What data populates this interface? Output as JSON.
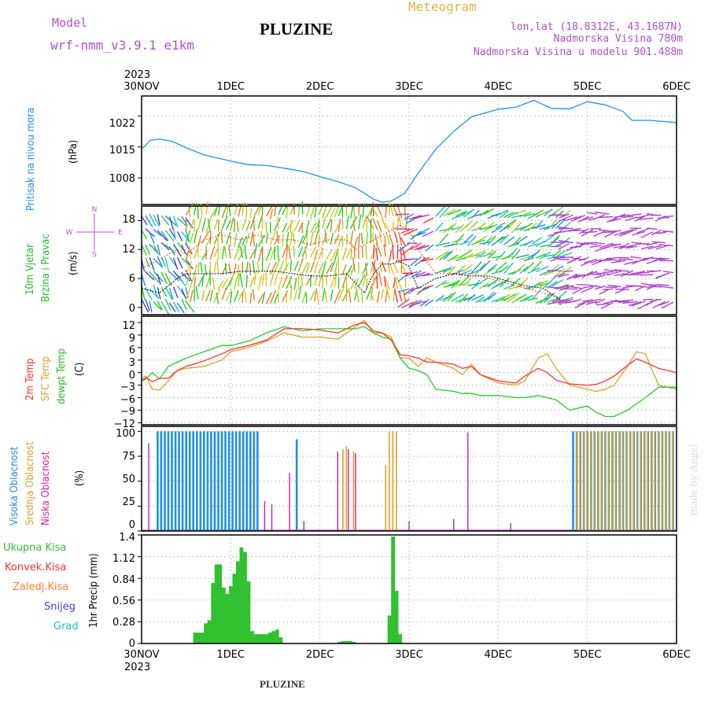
{
  "header": {
    "model_label": "Model",
    "model_name": "wrf-nmm_v3.9.1 e1km",
    "station": "PLUZINE",
    "meteogram": "Meteogram",
    "lonlat": "lon,lat (18.8312E, 43.1687N)",
    "altitude": "Nadmorska Visina 780m",
    "model_altitude": "Nadmorska Visina u modelu 901.488m",
    "footer_station": "PLUZINE",
    "watermark": "made by Angel"
  },
  "colors": {
    "pressure": "#1e90ff",
    "temp2m": "#ff3030",
    "sfc_temp": "#e0a020",
    "dewpt": "#20d020",
    "cloud_high": "#2090e0",
    "cloud_mid": "#e0a020",
    "cloud_low": "#c020c0",
    "precip": "#30c030",
    "label_purple": "#b050d0",
    "label_orange": "#e8b040"
  },
  "x_axis": {
    "top_year": "2023",
    "bottom_year": "2023",
    "labels": [
      "30NOV",
      "1DEC",
      "2DEC",
      "3DEC",
      "4DEC",
      "5DEC",
      "6DEC"
    ]
  },
  "wind_compass": {
    "n": "N",
    "s": "S",
    "w": "W",
    "e": "E"
  },
  "panels": {
    "pressure": {
      "ylabel1": "Pritisak na nivou mora",
      "unit": "(hPa)",
      "ticks": [
        "1008",
        "1015",
        "1022"
      ]
    },
    "wind": {
      "ylabel1": "10m Vjetar",
      "ylabel2": "Brzina i Pravac",
      "unit": "(m/s)",
      "ticks": [
        "0",
        "6",
        "12",
        "18"
      ]
    },
    "temp": {
      "l1": "2m Temp",
      "l2": "SFC Temp",
      "l3": "dewpt Temp",
      "unit": "(C)",
      "ticks": [
        "12",
        "9",
        "6",
        "3",
        "0",
        "−3",
        "−6",
        "−9",
        "−12"
      ]
    },
    "cloud": {
      "l1": "Visoka Oblacnost",
      "l2": "Srednja Oblacnost",
      "l3": "Niska Oblacnost",
      "unit": "(%)",
      "ticks": [
        "100",
        "75",
        "50",
        "25",
        "0"
      ]
    },
    "precip": {
      "unit_label": "1hr Precip (mm)",
      "ticks": [
        "1.4",
        "1.12",
        "0.84",
        "0.56",
        "0.28",
        "0"
      ],
      "legend": [
        "Ukupna Kisa",
        "Konvek.Kisa",
        "Zaledj.Kisa",
        "Snijeg",
        "Grad"
      ],
      "legend_colors": [
        "#30c030",
        "#ff3030",
        "#ff8030",
        "#4040e0",
        "#20c0c0"
      ]
    }
  },
  "chart_data": [
    {
      "type": "line",
      "name": "pressure",
      "x_unit": "days since 30NOV 00Z",
      "xlim": [
        0,
        6
      ],
      "ylim": [
        1002,
        1026.5
      ],
      "x": [
        0,
        0.1,
        0.2,
        0.35,
        0.5,
        0.7,
        1.0,
        1.2,
        1.4,
        1.6,
        1.8,
        2.0,
        2.2,
        2.4,
        2.6,
        2.7,
        2.8,
        2.95,
        3.1,
        3.3,
        3.5,
        3.7,
        4.0,
        4.2,
        4.4,
        4.6,
        4.8,
        5.0,
        5.2,
        5.4,
        5.5,
        5.7,
        6.0
      ],
      "y": [
        1014.5,
        1016.5,
        1016.8,
        1016.2,
        1014.8,
        1013.2,
        1011.8,
        1011.0,
        1010.8,
        1010.2,
        1009.5,
        1008.3,
        1007.2,
        1005.8,
        1003.2,
        1002.5,
        1002.8,
        1004.5,
        1009.0,
        1014.5,
        1018.5,
        1021.8,
        1023.5,
        1024.0,
        1025.5,
        1023.7,
        1023.6,
        1025.2,
        1024.5,
        1023.0,
        1021.0,
        1021.0,
        1020.5
      ]
    },
    {
      "type": "line",
      "name": "wind_speed",
      "xlim": [
        0,
        6
      ],
      "ylim": [
        -1.5,
        21
      ],
      "x": [
        0,
        0.2,
        0.4,
        0.5,
        0.7,
        0.9,
        1.1,
        1.3,
        1.5,
        1.7,
        1.9,
        2.1,
        2.3,
        2.4,
        2.5,
        2.6,
        2.7,
        2.8,
        2.9,
        3.0,
        3.1,
        3.3,
        3.5,
        3.7,
        3.9,
        4.1,
        4.3,
        4.5,
        4.7
      ],
      "y": [
        4,
        3,
        6,
        7,
        7,
        7,
        7.5,
        7.5,
        7.5,
        7,
        6.5,
        6.5,
        7,
        5,
        3,
        7,
        9,
        9,
        9.5,
        8.5,
        4,
        6,
        7,
        6.5,
        6.5,
        5.5,
        4.5,
        4,
        1.5
      ],
      "gust_y": [
        8,
        10,
        12,
        11,
        14,
        15,
        14,
        15,
        14,
        14,
        13,
        14,
        14,
        12,
        13,
        14,
        15,
        16,
        17,
        16,
        12,
        7,
        7,
        7,
        6,
        5,
        4,
        3,
        2
      ]
    },
    {
      "type": "line",
      "name": "temperature",
      "xlim": [
        0,
        6
      ],
      "ylim": [
        -12.5,
        13.5
      ],
      "x": [
        0,
        0.05,
        0.12,
        0.2,
        0.3,
        0.4,
        0.5,
        0.7,
        0.9,
        1.0,
        1.2,
        1.4,
        1.6,
        1.8,
        2.0,
        2.2,
        2.4,
        2.5,
        2.6,
        2.7,
        2.8,
        2.9,
        3.0,
        3.1,
        3.2,
        3.3,
        3.5,
        3.6,
        3.7,
        3.8,
        4.0,
        4.2,
        4.3,
        4.45,
        4.55,
        4.65,
        4.8,
        5.0,
        5.1,
        5.2,
        5.3,
        5.45,
        5.55,
        5.65,
        5.8,
        6.0
      ],
      "series": [
        {
          "name": "2m Temp",
          "y": [
            -2,
            -1.2,
            -2.2,
            -1.4,
            -1.3,
            0.5,
            1.5,
            2.8,
            4.5,
            5.5,
            6.5,
            7.8,
            10.5,
            10.5,
            10.2,
            9.5,
            11.5,
            12.0,
            10.0,
            9.5,
            7.8,
            4.3,
            4.0,
            3.5,
            2.5,
            2.5,
            2.0,
            1.0,
            1.5,
            -0.5,
            -2.0,
            -2.5,
            -0.8,
            1.0,
            0.0,
            -1.8,
            -2.7,
            -3.0,
            -2.8,
            -2.0,
            -0.8,
            1.7,
            3.3,
            2.5,
            1.0,
            0.0
          ]
        },
        {
          "name": "SFC Temp",
          "y": [
            -1.5,
            -0.8,
            -4.0,
            -4.2,
            -2.0,
            0.5,
            1.0,
            1.5,
            3.0,
            5.0,
            6.0,
            7.5,
            9.5,
            8.5,
            8.5,
            8.0,
            11.0,
            12.5,
            9.5,
            9.5,
            8.5,
            3.5,
            3.5,
            1.5,
            3.5,
            2.5,
            1.0,
            -0.5,
            2.0,
            -0.5,
            -2.5,
            -3.0,
            -2.0,
            3.5,
            4.5,
            1.0,
            -3.0,
            -4.0,
            -4.5,
            -4.0,
            -3.0,
            1.5,
            5.0,
            4.5,
            -3.0,
            -4.0
          ]
        },
        {
          "name": "dewpt Temp",
          "y": [
            -2,
            -1.5,
            0,
            -1.5,
            1.5,
            2.5,
            3.5,
            5.0,
            6.5,
            6.5,
            7.5,
            9.5,
            11.0,
            10.0,
            10.5,
            10.5,
            10.5,
            11.0,
            9.5,
            8.5,
            8.0,
            3.5,
            1.0,
            0.5,
            -0.5,
            -4.0,
            -4.5,
            -5.0,
            -5.0,
            -5.5,
            -5.5,
            -6.0,
            -6.0,
            -5.5,
            -6.0,
            -6.5,
            -9.0,
            -8.0,
            -9.5,
            -10.5,
            -10.5,
            -9.0,
            -7.5,
            -6.0,
            -3.5,
            -3.5
          ]
        }
      ]
    },
    {
      "type": "bar",
      "name": "cloud_cover",
      "xlim": [
        0,
        6
      ],
      "ylim": [
        0,
        105
      ],
      "bars": [
        {
          "layer": "high",
          "from": 0.18,
          "to": 1.32,
          "step": 0.04,
          "value": 100
        },
        {
          "layer": "high",
          "from": 1.74,
          "to": 1.74,
          "step": 0.04,
          "value": 92
        },
        {
          "layer": "high",
          "from": 4.84,
          "to": 5.98,
          "step": 0.04,
          "value": 100
        },
        {
          "layer": "mid",
          "from": 4.86,
          "to": 5.96,
          "step": 0.04,
          "value": 100
        },
        {
          "layer": "mid",
          "from": 2.72,
          "to": 2.72,
          "step": 0.04,
          "value": 66
        },
        {
          "layer": "mid",
          "from": 2.76,
          "to": 2.84,
          "step": 0.04,
          "value": 100
        },
        {
          "layer": "mid",
          "from": 2.24,
          "to": 2.24,
          "step": 0.04,
          "value": 82
        },
        {
          "layer": "mid",
          "from": 2.28,
          "to": 2.28,
          "step": 0.04,
          "value": 85
        },
        {
          "layer": "mid",
          "from": 2.36,
          "to": 2.36,
          "step": 0.04,
          "value": 80
        },
        {
          "layer": "low",
          "from": 0.08,
          "to": 0.08,
          "step": 0.04,
          "value": 88
        },
        {
          "layer": "low",
          "from": 1.38,
          "to": 1.38,
          "step": 0.04,
          "value": 30
        },
        {
          "layer": "low",
          "from": 1.46,
          "to": 1.46,
          "step": 0.04,
          "value": 27
        },
        {
          "layer": "low",
          "from": 1.66,
          "to": 1.66,
          "step": 0.04,
          "value": 58
        },
        {
          "layer": "low",
          "from": 1.82,
          "to": 1.82,
          "step": 0.04,
          "value": 10
        },
        {
          "layer": "low",
          "from": 2.2,
          "to": 2.2,
          "step": 0.04,
          "value": 80
        },
        {
          "layer": "low",
          "from": 2.32,
          "to": 2.32,
          "step": 0.04,
          "value": 82
        },
        {
          "layer": "low",
          "from": 2.4,
          "to": 2.4,
          "step": 0.04,
          "value": 78
        },
        {
          "layer": "low",
          "from": 3.0,
          "to": 3.0,
          "step": 0.04,
          "value": 10
        },
        {
          "layer": "low",
          "from": 3.66,
          "to": 3.66,
          "step": 0.04,
          "value": 99
        },
        {
          "layer": "low",
          "from": 3.5,
          "to": 3.5,
          "step": 0.04,
          "value": 12
        },
        {
          "layer": "low",
          "from": 4.14,
          "to": 4.14,
          "step": 0.04,
          "value": 8
        }
      ]
    },
    {
      "type": "bar",
      "name": "precipitation_1hr",
      "xlim": [
        0,
        6
      ],
      "ylim": [
        0,
        1.4
      ],
      "x": [
        0.6,
        0.64,
        0.68,
        0.72,
        0.76,
        0.8,
        0.84,
        0.88,
        0.92,
        0.96,
        1.0,
        1.04,
        1.08,
        1.12,
        1.16,
        1.2,
        1.24,
        1.28,
        1.32,
        1.36,
        1.4,
        1.44,
        1.48,
        1.52,
        1.56,
        2.22,
        2.26,
        2.3,
        2.34,
        2.38,
        2.78,
        2.82,
        2.86,
        2.9,
        2.94
      ],
      "y": [
        0.14,
        0.14,
        0.14,
        0.26,
        0.3,
        0.78,
        1.02,
        1.02,
        0.72,
        0.64,
        0.74,
        0.9,
        1.06,
        1.24,
        1.18,
        0.8,
        0.16,
        0.12,
        0.12,
        0.12,
        0.12,
        0.14,
        0.16,
        0.18,
        0.08,
        0.02,
        0.03,
        0.03,
        0.03,
        0.02,
        0.36,
        1.38,
        0.68,
        0.12,
        0.0
      ]
    }
  ]
}
